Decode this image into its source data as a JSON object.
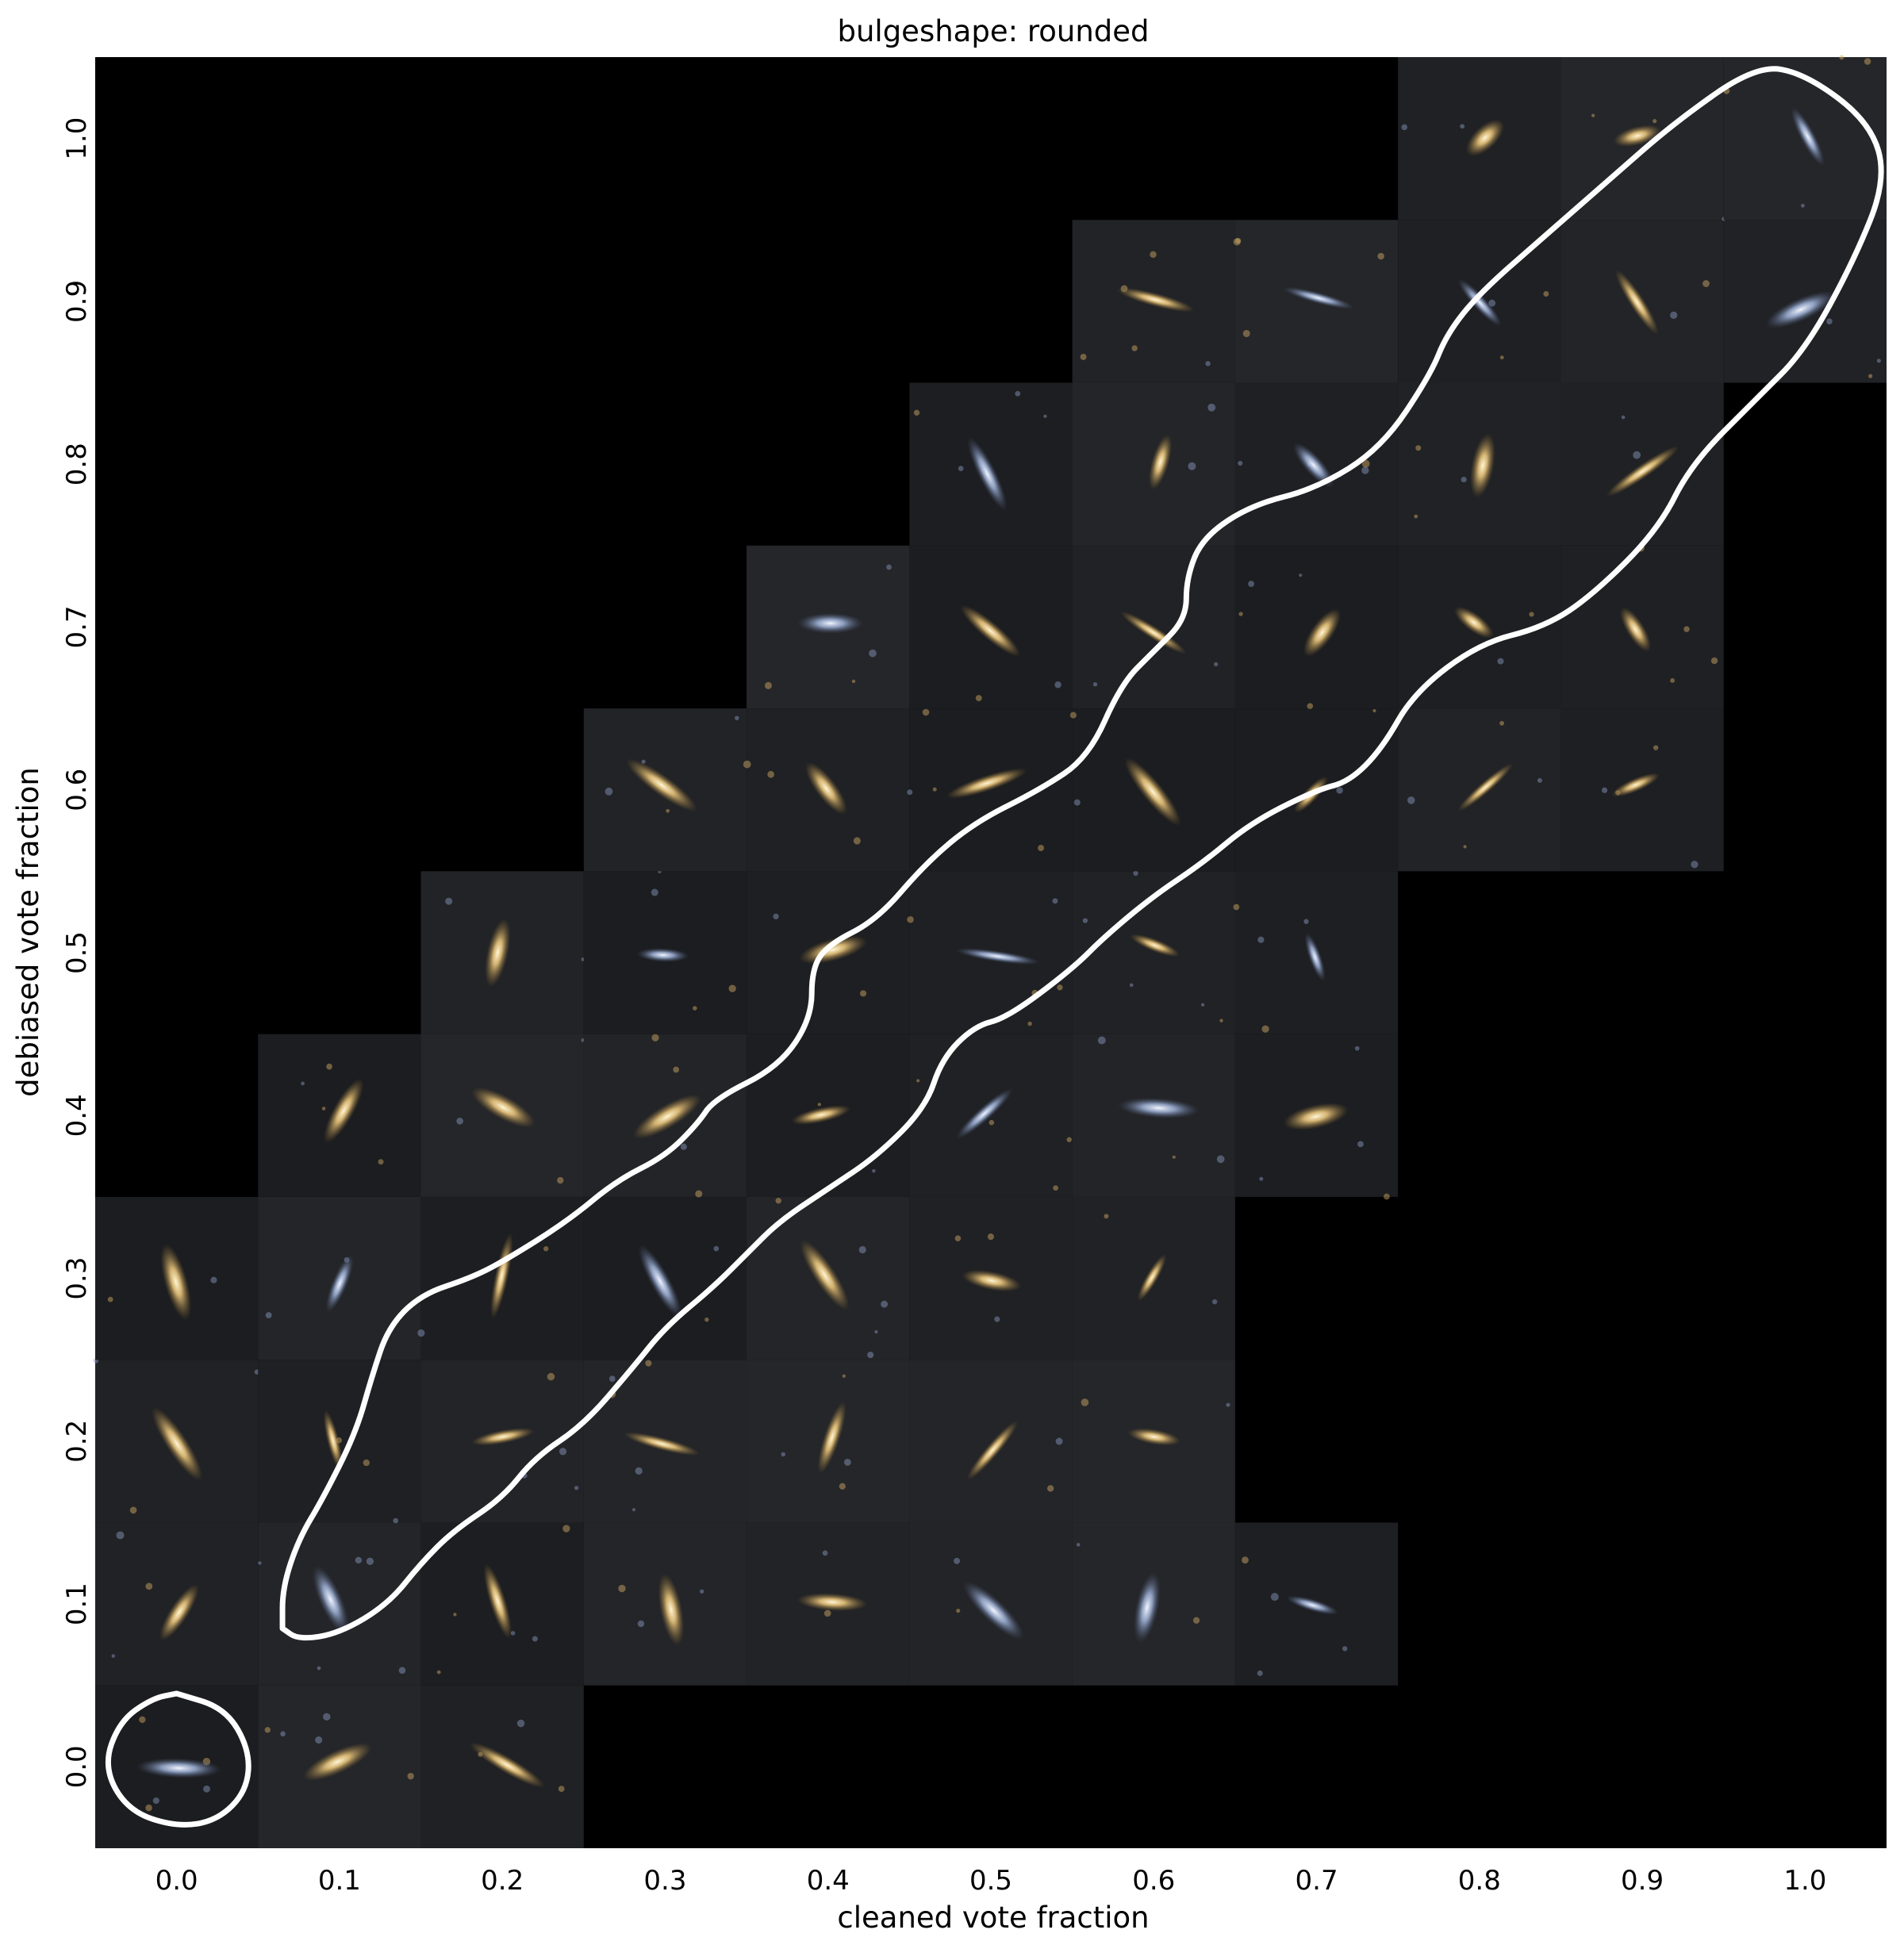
{
  "chart_data": {
    "type": "scatter",
    "title": "bulgeshape: rounded",
    "xlabel": "cleaned vote fraction",
    "ylabel": "debiased vote fraction",
    "xlim": [
      -0.05,
      1.05
    ],
    "ylim": [
      -0.05,
      1.05
    ],
    "xticks": [
      "0.0",
      "0.1",
      "0.2",
      "0.3",
      "0.4",
      "0.5",
      "0.6",
      "0.7",
      "0.8",
      "0.9",
      "1.0"
    ],
    "yticks": [
      "0.0",
      "0.1",
      "0.2",
      "0.3",
      "0.4",
      "0.5",
      "0.6",
      "0.7",
      "0.8",
      "0.9",
      "1.0"
    ],
    "grid": false,
    "background": "#000000",
    "thumbnail_bin_width": 0.1,
    "thumbnail_cells": [
      {
        "x": 0.0,
        "y": 0.0
      },
      {
        "x": 0.1,
        "y": 0.0
      },
      {
        "x": 0.2,
        "y": 0.0
      },
      {
        "x": 0.0,
        "y": 0.1
      },
      {
        "x": 0.1,
        "y": 0.1
      },
      {
        "x": 0.2,
        "y": 0.1
      },
      {
        "x": 0.3,
        "y": 0.1
      },
      {
        "x": 0.4,
        "y": 0.1
      },
      {
        "x": 0.5,
        "y": 0.1
      },
      {
        "x": 0.6,
        "y": 0.1
      },
      {
        "x": 0.7,
        "y": 0.1
      },
      {
        "x": 0.0,
        "y": 0.2
      },
      {
        "x": 0.1,
        "y": 0.2
      },
      {
        "x": 0.2,
        "y": 0.2
      },
      {
        "x": 0.3,
        "y": 0.2
      },
      {
        "x": 0.4,
        "y": 0.2
      },
      {
        "x": 0.5,
        "y": 0.2
      },
      {
        "x": 0.6,
        "y": 0.2
      },
      {
        "x": 0.0,
        "y": 0.3
      },
      {
        "x": 0.1,
        "y": 0.3
      },
      {
        "x": 0.2,
        "y": 0.3
      },
      {
        "x": 0.3,
        "y": 0.3
      },
      {
        "x": 0.4,
        "y": 0.3
      },
      {
        "x": 0.5,
        "y": 0.3
      },
      {
        "x": 0.6,
        "y": 0.3
      },
      {
        "x": 0.1,
        "y": 0.4
      },
      {
        "x": 0.2,
        "y": 0.4
      },
      {
        "x": 0.3,
        "y": 0.4
      },
      {
        "x": 0.4,
        "y": 0.4
      },
      {
        "x": 0.5,
        "y": 0.4
      },
      {
        "x": 0.6,
        "y": 0.4
      },
      {
        "x": 0.7,
        "y": 0.4
      },
      {
        "x": 0.2,
        "y": 0.5
      },
      {
        "x": 0.3,
        "y": 0.5
      },
      {
        "x": 0.4,
        "y": 0.5
      },
      {
        "x": 0.5,
        "y": 0.5
      },
      {
        "x": 0.6,
        "y": 0.5
      },
      {
        "x": 0.7,
        "y": 0.5
      },
      {
        "x": 0.3,
        "y": 0.6
      },
      {
        "x": 0.4,
        "y": 0.6
      },
      {
        "x": 0.5,
        "y": 0.6
      },
      {
        "x": 0.6,
        "y": 0.6
      },
      {
        "x": 0.7,
        "y": 0.6
      },
      {
        "x": 0.8,
        "y": 0.6
      },
      {
        "x": 0.9,
        "y": 0.6
      },
      {
        "x": 0.4,
        "y": 0.7
      },
      {
        "x": 0.5,
        "y": 0.7
      },
      {
        "x": 0.6,
        "y": 0.7
      },
      {
        "x": 0.7,
        "y": 0.7
      },
      {
        "x": 0.8,
        "y": 0.7
      },
      {
        "x": 0.9,
        "y": 0.7
      },
      {
        "x": 0.5,
        "y": 0.8
      },
      {
        "x": 0.6,
        "y": 0.8
      },
      {
        "x": 0.7,
        "y": 0.8
      },
      {
        "x": 0.8,
        "y": 0.8
      },
      {
        "x": 0.9,
        "y": 0.8
      },
      {
        "x": 0.6,
        "y": 0.9
      },
      {
        "x": 0.7,
        "y": 0.9
      },
      {
        "x": 0.8,
        "y": 0.9
      },
      {
        "x": 0.9,
        "y": 0.9
      },
      {
        "x": 1.0,
        "y": 0.9
      },
      {
        "x": 0.8,
        "y": 1.0
      },
      {
        "x": 0.9,
        "y": 1.0
      },
      {
        "x": 1.0,
        "y": 1.0
      }
    ],
    "contours": [
      {
        "points": [
          [
            0.0,
            0.045
          ],
          [
            0.03,
            0.036
          ],
          [
            0.045,
            0.01
          ],
          [
            0.043,
            -0.015
          ],
          [
            0.025,
            -0.033
          ],
          [
            0.0,
            -0.037
          ],
          [
            -0.03,
            -0.027
          ],
          [
            -0.045,
            0.0
          ],
          [
            -0.035,
            0.028
          ],
          [
            -0.015,
            0.042
          ],
          [
            0.0,
            0.045
          ]
        ]
      },
      {
        "points": [
          [
            0.065,
            0.085
          ],
          [
            0.075,
            0.078
          ],
          [
            0.1,
            0.082
          ],
          [
            0.13,
            0.1
          ],
          [
            0.15,
            0.125
          ],
          [
            0.17,
            0.145
          ],
          [
            0.2,
            0.165
          ],
          [
            0.22,
            0.19
          ],
          [
            0.25,
            0.21
          ],
          [
            0.28,
            0.245
          ],
          [
            0.3,
            0.27
          ],
          [
            0.33,
            0.295
          ],
          [
            0.35,
            0.315
          ],
          [
            0.37,
            0.335
          ],
          [
            0.4,
            0.355
          ],
          [
            0.43,
            0.375
          ],
          [
            0.46,
            0.405
          ],
          [
            0.47,
            0.435
          ],
          [
            0.49,
            0.455
          ],
          [
            0.51,
            0.46
          ],
          [
            0.55,
            0.49
          ],
          [
            0.57,
            0.51
          ],
          [
            0.6,
            0.535
          ],
          [
            0.63,
            0.555
          ],
          [
            0.66,
            0.58
          ],
          [
            0.7,
            0.6
          ],
          [
            0.72,
            0.605
          ],
          [
            0.74,
            0.625
          ],
          [
            0.76,
            0.66
          ],
          [
            0.8,
            0.69
          ],
          [
            0.84,
            0.7
          ],
          [
            0.87,
            0.72
          ],
          [
            0.91,
            0.76
          ],
          [
            0.93,
            0.8
          ],
          [
            0.97,
            0.84
          ],
          [
            1.0,
            0.87
          ],
          [
            1.03,
            0.925
          ],
          [
            1.05,
            0.975
          ],
          [
            1.04,
            1.01
          ],
          [
            1.0,
            1.04
          ],
          [
            0.97,
            1.045
          ],
          [
            0.92,
            1.01
          ],
          [
            0.88,
            0.975
          ],
          [
            0.84,
            0.94
          ],
          [
            0.8,
            0.905
          ],
          [
            0.78,
            0.88
          ],
          [
            0.77,
            0.855
          ],
          [
            0.74,
            0.81
          ],
          [
            0.7,
            0.785
          ],
          [
            0.66,
            0.775
          ],
          [
            0.63,
            0.755
          ],
          [
            0.62,
            0.73
          ],
          [
            0.62,
            0.705
          ],
          [
            0.6,
            0.685
          ],
          [
            0.58,
            0.665
          ],
          [
            0.56,
            0.62
          ],
          [
            0.53,
            0.6
          ],
          [
            0.49,
            0.58
          ],
          [
            0.46,
            0.555
          ],
          [
            0.43,
            0.52
          ],
          [
            0.4,
            0.505
          ],
          [
            0.39,
            0.49
          ],
          [
            0.39,
            0.46
          ],
          [
            0.37,
            0.43
          ],
          [
            0.33,
            0.41
          ],
          [
            0.32,
            0.395
          ],
          [
            0.3,
            0.375
          ],
          [
            0.27,
            0.36
          ],
          [
            0.24,
            0.335
          ],
          [
            0.2,
            0.31
          ],
          [
            0.18,
            0.3
          ],
          [
            0.15,
            0.29
          ],
          [
            0.13,
            0.27
          ],
          [
            0.12,
            0.24
          ],
          [
            0.11,
            0.205
          ],
          [
            0.09,
            0.165
          ],
          [
            0.075,
            0.14
          ],
          [
            0.065,
            0.11
          ],
          [
            0.065,
            0.085
          ]
        ]
      }
    ]
  }
}
